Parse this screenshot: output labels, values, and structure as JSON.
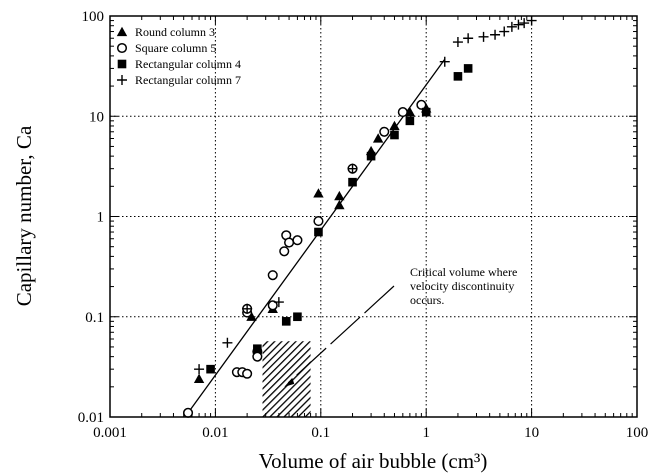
{
  "chart_data": {
    "type": "scatter",
    "title": "",
    "xlabel": "Volume of air bubble (cm³)",
    "ylabel": "Capillary number, Ca",
    "x_scale": "log",
    "y_scale": "log",
    "xlim": [
      0.001,
      100
    ],
    "ylim": [
      0.01,
      100
    ],
    "x_ticks": [
      0.001,
      0.01,
      0.1,
      1,
      10,
      100
    ],
    "x_tick_labels": [
      "0.001",
      "0.01",
      "0.1",
      "1",
      "10",
      "100"
    ],
    "y_ticks": [
      0.01,
      0.1,
      1,
      10,
      100
    ],
    "y_tick_labels": [
      "0.01",
      "0.1",
      "1",
      "10",
      "100"
    ],
    "grid": true,
    "grid_style": "dotted",
    "legend_position": "top-left",
    "series": [
      {
        "name": "Round column 3",
        "marker": "filled-triangle",
        "points": [
          [
            0.007,
            0.024
          ],
          [
            0.022,
            0.1
          ],
          [
            0.035,
            0.12
          ],
          [
            0.095,
            1.7
          ],
          [
            0.15,
            1.3
          ],
          [
            0.15,
            1.6
          ],
          [
            0.3,
            4.5
          ],
          [
            0.35,
            6.0
          ],
          [
            0.5,
            8.0
          ],
          [
            0.7,
            11.0
          ],
          [
            1.0,
            12.0
          ]
        ]
      },
      {
        "name": "Square column 5",
        "marker": "open-circle",
        "points": [
          [
            0.0055,
            0.011
          ],
          [
            0.016,
            0.028
          ],
          [
            0.018,
            0.028
          ],
          [
            0.02,
            0.027
          ],
          [
            0.02,
            0.11
          ],
          [
            0.02,
            0.12
          ],
          [
            0.025,
            0.045
          ],
          [
            0.025,
            0.04
          ],
          [
            0.035,
            0.13
          ],
          [
            0.035,
            0.26
          ],
          [
            0.045,
            0.45
          ],
          [
            0.047,
            0.65
          ],
          [
            0.05,
            0.55
          ],
          [
            0.06,
            0.58
          ],
          [
            0.095,
            0.9
          ],
          [
            0.2,
            3.0
          ],
          [
            0.4,
            7.0
          ],
          [
            0.6,
            11.0
          ],
          [
            0.9,
            13.0
          ]
        ]
      },
      {
        "name": "Rectangular column 4",
        "marker": "filled-square",
        "points": [
          [
            0.009,
            0.03
          ],
          [
            0.025,
            0.048
          ],
          [
            0.047,
            0.09
          ],
          [
            0.06,
            0.1
          ],
          [
            0.095,
            0.7
          ],
          [
            0.2,
            2.2
          ],
          [
            0.3,
            4.0
          ],
          [
            0.5,
            6.5
          ],
          [
            0.7,
            9.0
          ],
          [
            1.0,
            11.0
          ],
          [
            2.0,
            25.0
          ],
          [
            2.5,
            30.0
          ]
        ]
      },
      {
        "name": "Rectangular column 7",
        "marker": "plus",
        "points": [
          [
            0.007,
            0.03
          ],
          [
            0.013,
            0.055
          ],
          [
            0.02,
            0.12
          ],
          [
            0.04,
            0.14
          ],
          [
            0.2,
            3.0
          ],
          [
            1.5,
            35.0
          ],
          [
            2.0,
            55.0
          ],
          [
            2.5,
            60.0
          ],
          [
            3.5,
            62.0
          ],
          [
            4.5,
            65.0
          ],
          [
            5.5,
            70.0
          ],
          [
            6.5,
            78.0
          ],
          [
            7.5,
            82.0
          ],
          [
            8.5,
            85.0
          ],
          [
            10.0,
            90.0
          ]
        ]
      }
    ],
    "fit_line": {
      "points": [
        [
          0.0055,
          0.011
        ],
        [
          1.5,
          37.0
        ]
      ]
    },
    "hatched_region": {
      "x": [
        0.028,
        0.08
      ],
      "y": [
        0.01,
        0.057
      ]
    },
    "annotation": {
      "lines": [
        "Critical volume where",
        "velocity discontinuity",
        "occurs."
      ],
      "arrow_to": [
        0.045,
        0.02
      ]
    }
  }
}
